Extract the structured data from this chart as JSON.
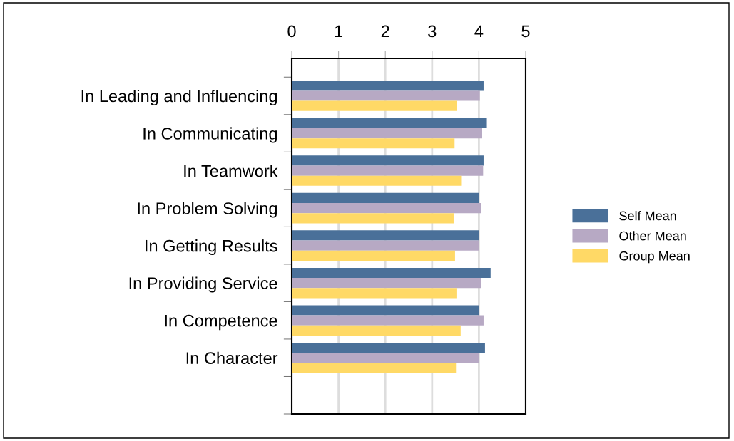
{
  "chart_data": {
    "type": "bar",
    "orientation": "horizontal",
    "categories": [
      "In Leading and Influencing",
      "In Communicating",
      "In Teamwork",
      "In Problem Solving",
      "In Getting Results",
      "In Providing Service",
      "In Competence",
      "In Character"
    ],
    "series": [
      {
        "name": "Self Mean",
        "color": "#4a7099",
        "values": [
          4.1,
          4.17,
          4.1,
          4.0,
          4.0,
          4.25,
          4.0,
          4.13
        ]
      },
      {
        "name": "Other Mean",
        "color": "#b7a9c4",
        "values": [
          4.02,
          4.07,
          4.09,
          4.04,
          4.0,
          4.05,
          4.1,
          4.0
        ]
      },
      {
        "name": "Group Mean",
        "color": "#ffd966",
        "values": [
          3.53,
          3.48,
          3.62,
          3.46,
          3.49,
          3.52,
          3.61,
          3.51
        ]
      }
    ],
    "xlim": [
      0,
      5
    ],
    "xticks": [
      0,
      1,
      2,
      3,
      4,
      5
    ],
    "grid": "x",
    "legend": "right"
  }
}
